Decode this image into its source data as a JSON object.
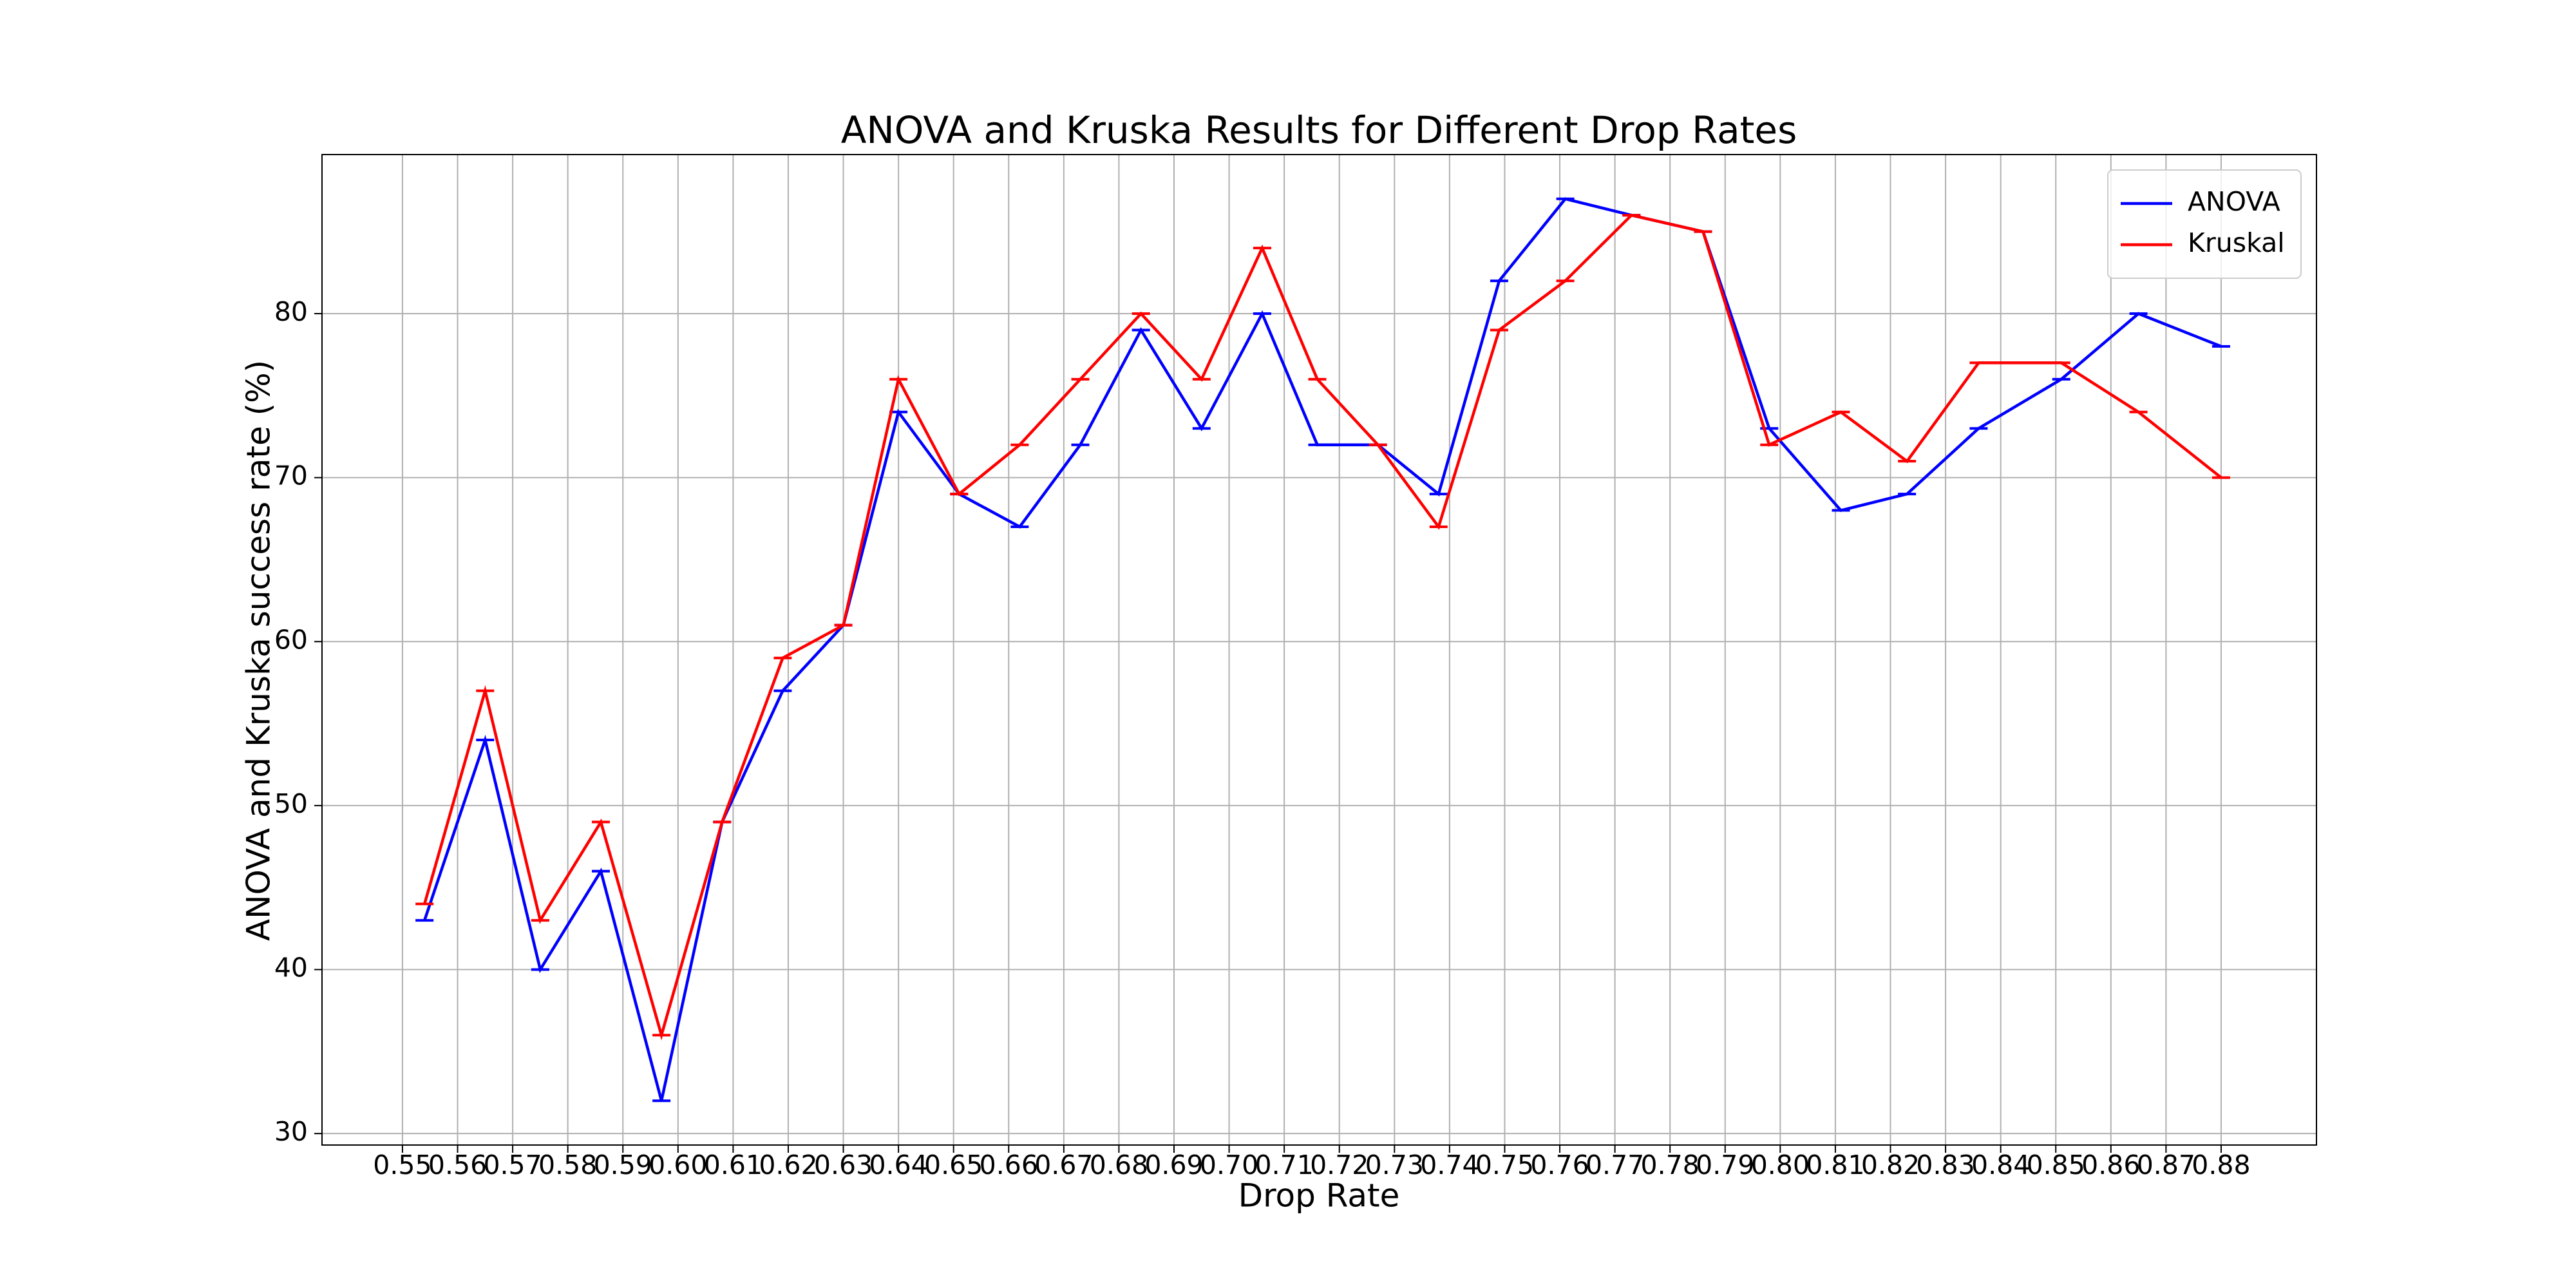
{
  "chart_data": {
    "type": "line",
    "title": "ANOVA and Kruska Results for Different Drop Rates",
    "x_label": "Drop Rate",
    "y_label": "ANOVA and Kruska success rate (%)",
    "x": [
      0.554,
      0.565,
      0.575,
      0.586,
      0.597,
      0.608,
      0.619,
      0.63,
      0.64,
      0.651,
      0.662,
      0.673,
      0.684,
      0.695,
      0.706,
      0.716,
      0.727,
      0.738,
      0.749,
      0.761,
      0.773,
      0.786,
      0.798,
      0.811,
      0.823,
      0.836,
      0.851,
      0.865,
      0.88
    ],
    "series": [
      {
        "name": "ANOVA",
        "color": "#0000ff",
        "values": [
          43,
          54,
          40,
          46,
          32,
          49,
          57,
          61,
          74,
          69,
          67,
          72,
          79,
          73,
          80,
          72,
          72,
          69,
          82,
          87,
          86,
          85,
          73,
          68,
          69,
          73,
          76,
          80,
          78
        ]
      },
      {
        "name": "Kruskal",
        "color": "#ff0000",
        "values": [
          44,
          57,
          43,
          49,
          36,
          49,
          59,
          61,
          76,
          69,
          72,
          76,
          80,
          76,
          84,
          76,
          72,
          67,
          79,
          82,
          86,
          85,
          72,
          74,
          71,
          77,
          77,
          74,
          70
        ]
      }
    ],
    "xlim": [
      0.5354,
      0.8973
    ],
    "ylim": [
      29.3,
      89.7
    ],
    "xticks": [
      0.55,
      0.56,
      0.57,
      0.58,
      0.59,
      {
        "value": 0.6,
        "label": "0.60"
      },
      0.61,
      0.62,
      0.63,
      0.64,
      0.65,
      0.66,
      0.67,
      0.68,
      0.69,
      {
        "value": 0.7,
        "label": "0.70"
      },
      0.71,
      0.72,
      0.73,
      0.74,
      0.75,
      0.76,
      0.77,
      0.78,
      0.79,
      {
        "value": 0.8,
        "label": "0.80"
      },
      0.81,
      0.82,
      0.83,
      0.84,
      0.85,
      0.86,
      0.87,
      0.88
    ],
    "yticks": [
      30,
      40,
      50,
      60,
      70,
      80
    ],
    "grid": true,
    "legend": "upper right"
  }
}
